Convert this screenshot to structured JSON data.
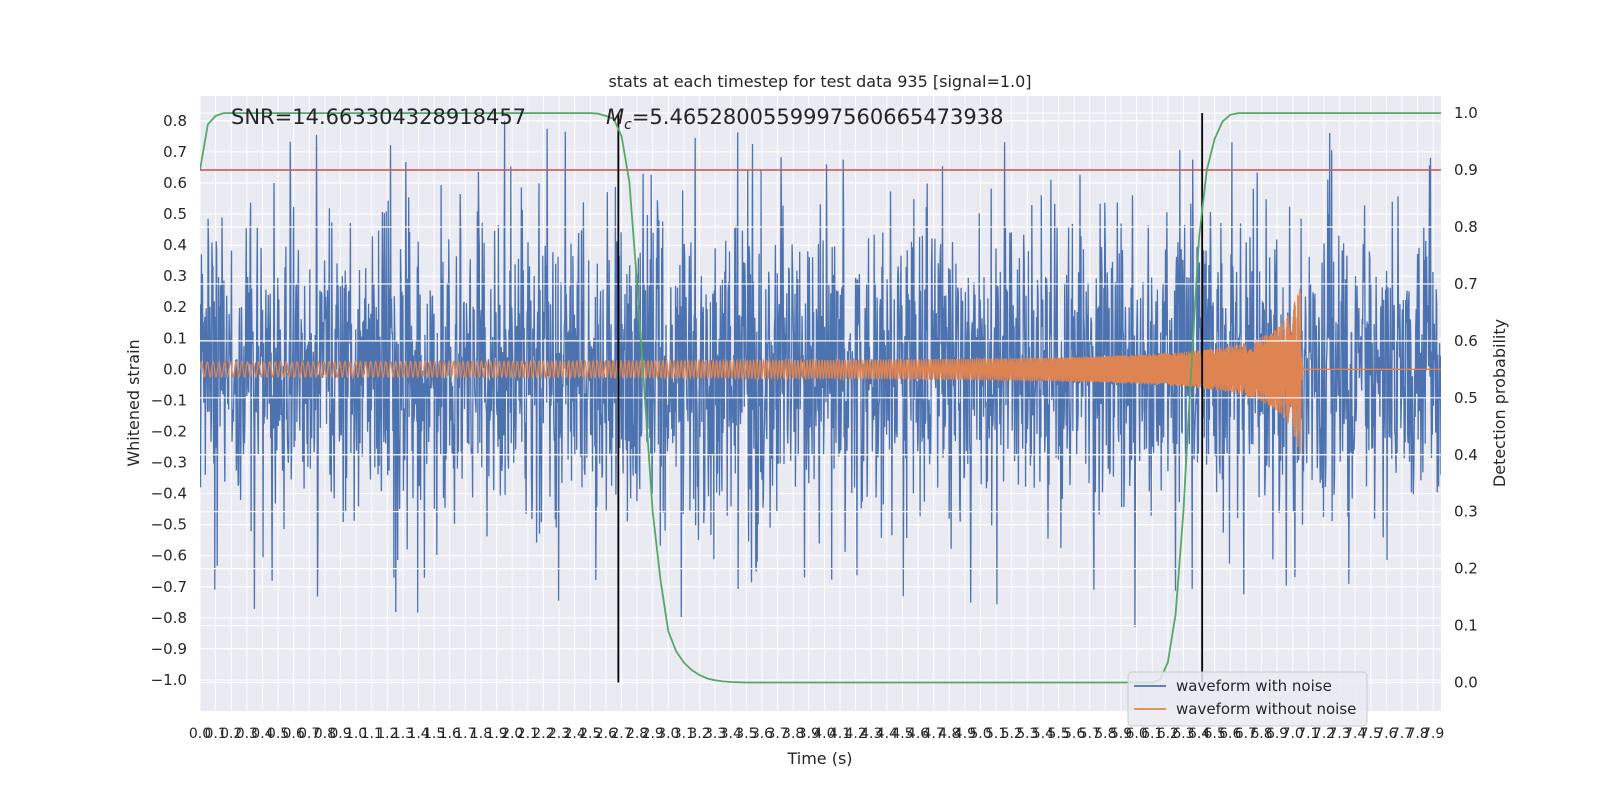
{
  "chart_data": {
    "type": "line",
    "title": "stats at each timestep for test data 935 [signal=1.0]",
    "xlabel": "Time (s)",
    "ylabel_left": "Whitened strain",
    "ylabel_right": "Detection probability",
    "xlim": [
      0.0,
      7.95
    ],
    "ylim_left": [
      -1.1,
      0.88
    ],
    "ylim_right": [
      -0.05,
      1.03
    ],
    "x_ticks": [
      0.0,
      0.1,
      0.2,
      0.3,
      0.4,
      0.5,
      0.6,
      0.7,
      0.8,
      0.9,
      1.0,
      1.1,
      1.2,
      1.3,
      1.4,
      1.5,
      1.6,
      1.7,
      1.8,
      1.9,
      2.0,
      2.1,
      2.2,
      2.3,
      2.4,
      2.5,
      2.6,
      2.7,
      2.8,
      2.9,
      3.0,
      3.1,
      3.2,
      3.3,
      3.4,
      3.5,
      3.6,
      3.7,
      3.8,
      3.9,
      4.0,
      4.1,
      4.2,
      4.3,
      4.4,
      4.5,
      4.6,
      4.7,
      4.8,
      4.9,
      5.0,
      5.1,
      5.2,
      5.3,
      5.4,
      5.5,
      5.6,
      5.7,
      5.8,
      5.9,
      6.0,
      6.1,
      6.2,
      6.3,
      6.4,
      6.5,
      6.6,
      6.7,
      6.8,
      6.9,
      7.0,
      7.1,
      7.2,
      7.3,
      7.4,
      7.5,
      7.6,
      7.7,
      7.8,
      7.9
    ],
    "y_ticks_left": [
      0.8,
      0.7,
      0.6,
      0.5,
      0.4,
      0.3,
      0.2,
      0.1,
      0.0,
      -0.1,
      -0.2,
      -0.3,
      -0.4,
      -0.5,
      -0.6,
      -0.7,
      -0.8,
      -0.9,
      -1.0
    ],
    "y_tick_labels_left": [
      "0.8",
      "0.7",
      "0.6",
      "0.5",
      "0.4",
      "0.3",
      "0.2",
      "0.1",
      "0.0",
      "−0.1",
      "−0.2",
      "−0.3",
      "−0.4",
      "−0.5",
      "−0.6",
      "−0.7",
      "−0.8",
      "−0.9",
      "−1.0"
    ],
    "y_ticks_right": [
      1.0,
      0.9,
      0.8,
      0.7,
      0.6,
      0.5,
      0.4,
      0.3,
      0.2,
      0.1,
      0.0
    ],
    "y_tick_labels_right": [
      "1.0",
      "0.9",
      "0.8",
      "0.7",
      "0.6",
      "0.5",
      "0.4",
      "0.3",
      "0.2",
      "0.1",
      "0.0"
    ],
    "annotations": {
      "snr": "SNR=14.663304328918457",
      "mc_symbol": "M",
      "mc_sub": "c",
      "mc_value": "=5.4652800559997560665473938"
    },
    "vertical_lines_x": [
      2.68,
      6.42
    ],
    "threshold_probability": 0.9,
    "chirp": {
      "merger_time": 7.05,
      "ringdown_end": 7.06,
      "amplitude_start": 0.02,
      "amplitude_peak": 0.31
    },
    "noise": {
      "approx_envelope": 0.44,
      "max_spike": 0.8,
      "min_spike": -0.98
    },
    "series": [
      {
        "name": "waveform with noise",
        "color": "#4c72b0"
      },
      {
        "name": "waveform without noise",
        "color": "#dd8452"
      },
      {
        "name": "detection probability",
        "color": "#55a868",
        "x": [
          0.0,
          0.05,
          0.1,
          0.15,
          0.2,
          2.5,
          2.55,
          2.6,
          2.65,
          2.7,
          2.75,
          2.8,
          2.85,
          2.9,
          2.95,
          3.0,
          3.05,
          3.1,
          3.15,
          3.2,
          3.25,
          3.3,
          3.35,
          3.4,
          3.5,
          6.0,
          6.1,
          6.15,
          6.2,
          6.25,
          6.3,
          6.35,
          6.4,
          6.45,
          6.5,
          6.55,
          6.6,
          6.65,
          6.7,
          7.95
        ],
        "values": [
          0.9,
          0.98,
          0.995,
          1.0,
          1.0,
          1.0,
          0.999,
          0.995,
          0.99,
          0.96,
          0.88,
          0.7,
          0.5,
          0.3,
          0.18,
          0.09,
          0.055,
          0.035,
          0.022,
          0.013,
          0.007,
          0.004,
          0.002,
          0.001,
          0.0,
          0.0,
          0.0,
          0.005,
          0.035,
          0.12,
          0.3,
          0.55,
          0.78,
          0.9,
          0.955,
          0.985,
          0.997,
          1.0,
          1.0,
          1.0
        ]
      }
    ],
    "colors": {
      "threshold": "#c44e52",
      "vline": "#000000",
      "plot_bg": "#eaeaf2",
      "grid": "#ffffff"
    }
  }
}
